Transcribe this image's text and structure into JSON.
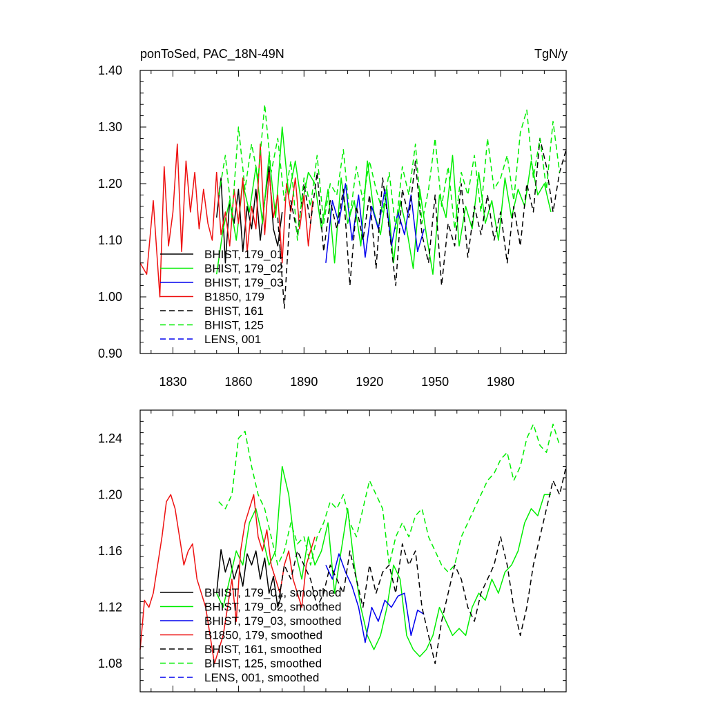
{
  "colors": {
    "black": "#000000",
    "green": "#00ee00",
    "blue": "#0000ee",
    "red": "#ee1111"
  },
  "chart_data": [
    {
      "type": "line",
      "title": "ponToSed, PAC_18N-49N",
      "units": "TgN/y",
      "xlim": [
        1815,
        2010
      ],
      "ylim": [
        0.9,
        1.4
      ],
      "xticks": [
        1830,
        1860,
        1890,
        1920,
        1950,
        1980
      ],
      "xtick_labels": [
        "1830",
        "1860",
        "1890",
        "1920",
        "1950",
        "1980"
      ],
      "yticks": [
        0.9,
        1.0,
        1.1,
        1.2,
        1.3,
        1.4
      ],
      "ytick_labels": [
        "0.90",
        "1.00",
        "1.10",
        "1.20",
        "1.30",
        "1.40"
      ],
      "legend_position": "lower-left",
      "series": [
        {
          "name": "BHIST, 179_01",
          "color": "black",
          "dash": false,
          "x": [
            1850,
            1852,
            1854,
            1856,
            1858,
            1860,
            1862,
            1864,
            1866,
            1868,
            1870,
            1872,
            1874,
            1876,
            1878,
            1880
          ],
          "y": [
            1.14,
            1.21,
            1.06,
            1.17,
            1.13,
            1.19,
            1.08,
            1.16,
            1.12,
            1.19,
            1.1,
            1.17,
            1.23,
            1.12,
            1.09,
            1.15
          ]
        },
        {
          "name": "BHIST, 179_02",
          "color": "green",
          "dash": false,
          "x": [
            1850,
            1853,
            1856,
            1859,
            1862,
            1865,
            1868,
            1871,
            1874,
            1877,
            1880,
            1883,
            1886,
            1889,
            1892,
            1895,
            1898,
            1901,
            1904,
            1907,
            1910,
            1913,
            1916,
            1919,
            1922,
            1925,
            1928,
            1931,
            1934,
            1937,
            1940,
            1943,
            1946,
            1949,
            1952,
            1955,
            1958,
            1961,
            1964,
            1967,
            1970,
            1973,
            1976,
            1979,
            1982,
            1985,
            1988,
            1991,
            1994,
            1997,
            2000,
            2003
          ],
          "y": [
            1.04,
            1.12,
            1.17,
            1.1,
            1.2,
            1.15,
            1.23,
            1.13,
            1.25,
            1.14,
            1.3,
            1.18,
            1.24,
            1.16,
            1.22,
            1.2,
            1.12,
            1.19,
            1.06,
            1.21,
            1.13,
            1.17,
            1.09,
            1.24,
            1.15,
            1.11,
            1.19,
            1.06,
            1.17,
            1.12,
            1.05,
            1.19,
            1.11,
            1.04,
            1.18,
            1.14,
            1.25,
            1.09,
            1.16,
            1.12,
            1.22,
            1.13,
            1.17,
            1.1,
            1.21,
            1.14,
            1.19,
            1.16,
            1.24,
            1.18,
            1.2,
            1.15
          ]
        },
        {
          "name": "BHIST, 179_03",
          "color": "blue",
          "dash": false,
          "x": [
            1900,
            1903,
            1906,
            1909,
            1912,
            1915,
            1918,
            1921,
            1924,
            1927,
            1930,
            1933,
            1936,
            1939,
            1942,
            1945
          ],
          "y": [
            1.06,
            1.17,
            1.13,
            1.2,
            1.1,
            1.18,
            1.07,
            1.16,
            1.12,
            1.19,
            1.09,
            1.15,
            1.11,
            1.18,
            1.08,
            1.12
          ]
        },
        {
          "name": "B1850, 179",
          "color": "red",
          "dash": false,
          "x": [
            1815,
            1818,
            1821,
            1824,
            1826,
            1828,
            1830,
            1832,
            1834,
            1836,
            1838,
            1840,
            1842,
            1844,
            1846,
            1848,
            1850,
            1852,
            1854,
            1856,
            1858,
            1860,
            1862,
            1864,
            1866,
            1868,
            1870,
            1872,
            1874,
            1876,
            1878,
            1880,
            1882,
            1884,
            1886,
            1888,
            1890,
            1892,
            1894
          ],
          "y": [
            1.06,
            1.04,
            1.17,
            1.0,
            1.23,
            1.09,
            1.15,
            1.27,
            1.08,
            1.24,
            1.15,
            1.22,
            1.12,
            1.19,
            1.13,
            1.1,
            1.22,
            1.11,
            1.15,
            1.09,
            1.19,
            1.13,
            1.21,
            1.08,
            1.16,
            1.12,
            1.27,
            1.11,
            1.22,
            1.14,
            1.18,
            1.06,
            1.2,
            1.15,
            1.21,
            1.12,
            1.18,
            1.09,
            1.17
          ]
        },
        {
          "name": "BHIST, 161",
          "color": "black",
          "dash": true,
          "x": [
            1878,
            1881,
            1884,
            1887,
            1890,
            1893,
            1896,
            1899,
            1902,
            1905,
            1908,
            1911,
            1914,
            1917,
            1920,
            1923,
            1926,
            1929,
            1932,
            1935,
            1938,
            1941,
            1944,
            1947,
            1950,
            1953,
            1956,
            1959,
            1962,
            1965,
            1968,
            1971,
            1974,
            1977,
            1980,
            1983,
            1986,
            1989,
            1992,
            1995,
            1998,
            2001,
            2004,
            2007,
            2010
          ],
          "y": [
            1.14,
            0.98,
            1.17,
            1.11,
            1.2,
            1.13,
            1.22,
            1.08,
            1.17,
            1.12,
            1.19,
            1.02,
            1.16,
            1.1,
            1.18,
            1.05,
            1.21,
            1.12,
            1.02,
            1.19,
            1.14,
            1.24,
            1.11,
            1.06,
            1.18,
            1.02,
            1.13,
            1.09,
            1.2,
            1.07,
            1.16,
            1.11,
            1.18,
            1.1,
            1.15,
            1.06,
            1.16,
            1.09,
            1.2,
            1.15,
            1.28,
            1.23,
            1.15,
            1.22,
            1.26
          ]
        },
        {
          "name": "BHIST, 125",
          "color": "green",
          "dash": true,
          "x": [
            1851,
            1854,
            1857,
            1860,
            1863,
            1866,
            1869,
            1872,
            1875,
            1878,
            1881,
            1884,
            1887,
            1890,
            1893,
            1896,
            1899,
            1902,
            1905,
            1908,
            1911,
            1914,
            1917,
            1920,
            1923,
            1926,
            1929,
            1932,
            1935,
            1938,
            1941,
            1944,
            1947,
            1950,
            1953,
            1956,
            1959,
            1962,
            1965,
            1968,
            1971,
            1974,
            1977,
            1980,
            1983,
            1986,
            1989,
            1992,
            1995,
            1998,
            2001,
            2004,
            2007
          ],
          "y": [
            1.18,
            1.25,
            1.14,
            1.3,
            1.19,
            1.27,
            1.21,
            1.34,
            1.22,
            1.28,
            1.17,
            1.24,
            1.1,
            1.21,
            1.16,
            1.25,
            1.13,
            1.2,
            1.18,
            1.26,
            1.14,
            1.23,
            1.17,
            1.24,
            1.19,
            1.15,
            1.22,
            1.12,
            1.23,
            1.18,
            1.27,
            1.13,
            1.19,
            1.28,
            1.16,
            1.23,
            1.12,
            1.22,
            1.18,
            1.25,
            1.15,
            1.28,
            1.19,
            1.21,
            1.25,
            1.17,
            1.29,
            1.33,
            1.21,
            1.28,
            1.19,
            1.31,
            1.22
          ]
        },
        {
          "name": "LENS, 001",
          "color": "blue",
          "dash": true,
          "x": [],
          "y": []
        }
      ]
    },
    {
      "type": "line",
      "title": "",
      "xlim": [
        1815,
        2010
      ],
      "ylim": [
        1.06,
        1.26
      ],
      "yticks": [
        1.08,
        1.12,
        1.16,
        1.2,
        1.24
      ],
      "ytick_labels": [
        "1.08",
        "1.12",
        "1.16",
        "1.20",
        "1.24"
      ],
      "legend_position": "lower-left",
      "series": [
        {
          "name": "BHIST, 179_01, smoothed",
          "color": "black",
          "dash": false,
          "x": [
            1850,
            1852,
            1854,
            1856,
            1858,
            1860,
            1862,
            1864,
            1866,
            1868,
            1870,
            1872,
            1874,
            1876,
            1878,
            1880
          ],
          "y": [
            1.13,
            1.161,
            1.145,
            1.155,
            1.14,
            1.15,
            1.135,
            1.158,
            1.15,
            1.16,
            1.14,
            1.155,
            1.13,
            1.142,
            1.12,
            1.13
          ]
        },
        {
          "name": "BHIST, 179_02, smoothed",
          "color": "green",
          "dash": false,
          "x": [
            1850,
            1853,
            1856,
            1859,
            1862,
            1865,
            1868,
            1871,
            1874,
            1877,
            1880,
            1883,
            1886,
            1889,
            1892,
            1895,
            1898,
            1901,
            1904,
            1907,
            1910,
            1913,
            1916,
            1919,
            1922,
            1925,
            1928,
            1931,
            1934,
            1937,
            1940,
            1943,
            1946,
            1949,
            1952,
            1955,
            1958,
            1961,
            1964,
            1967,
            1970,
            1973,
            1976,
            1979,
            1982,
            1985,
            1988,
            1991,
            1994,
            1997,
            2000,
            2003
          ],
          "y": [
            1.13,
            1.12,
            1.14,
            1.16,
            1.15,
            1.18,
            1.19,
            1.17,
            1.15,
            1.16,
            1.22,
            1.2,
            1.16,
            1.14,
            1.17,
            1.15,
            1.16,
            1.18,
            1.13,
            1.16,
            1.19,
            1.15,
            1.12,
            1.1,
            1.09,
            1.1,
            1.12,
            1.15,
            1.14,
            1.1,
            1.09,
            1.085,
            1.09,
            1.1,
            1.12,
            1.11,
            1.1,
            1.105,
            1.1,
            1.12,
            1.13,
            1.125,
            1.14,
            1.13,
            1.145,
            1.15,
            1.16,
            1.18,
            1.19,
            1.185,
            1.2,
            1.2
          ]
        },
        {
          "name": "BHIST, 179_03, smoothed",
          "color": "blue",
          "dash": false,
          "x": [
            1900,
            1903,
            1906,
            1909,
            1912,
            1915,
            1918,
            1921,
            1924,
            1927,
            1930,
            1933,
            1936,
            1939,
            1942,
            1945
          ],
          "y": [
            1.15,
            1.14,
            1.158,
            1.145,
            1.135,
            1.12,
            1.095,
            1.12,
            1.11,
            1.125,
            1.12,
            1.128,
            1.13,
            1.1,
            1.118,
            1.115
          ]
        },
        {
          "name": "B1850, 179, smoothed",
          "color": "red",
          "dash": false,
          "x": [
            1815,
            1817,
            1819,
            1821,
            1823,
            1825,
            1827,
            1829,
            1831,
            1833,
            1835,
            1837,
            1839,
            1841,
            1843,
            1845,
            1847,
            1849,
            1851,
            1853,
            1855,
            1857,
            1859,
            1861,
            1863,
            1865,
            1867,
            1869,
            1871,
            1873,
            1875,
            1877,
            1879,
            1881,
            1883,
            1885,
            1887,
            1889,
            1891,
            1893,
            1895
          ],
          "y": [
            1.09,
            1.125,
            1.12,
            1.13,
            1.15,
            1.17,
            1.195,
            1.2,
            1.19,
            1.17,
            1.15,
            1.16,
            1.165,
            1.14,
            1.13,
            1.12,
            1.1,
            1.08,
            1.09,
            1.1,
            1.12,
            1.14,
            1.11,
            1.16,
            1.18,
            1.19,
            1.2,
            1.17,
            1.16,
            1.175,
            1.15,
            1.14,
            1.13,
            1.15,
            1.16,
            1.14,
            1.13,
            1.12,
            1.15,
            1.16,
            1.17
          ]
        },
        {
          "name": "BHIST, 161, smoothed",
          "color": "black",
          "dash": true,
          "x": [
            1878,
            1881,
            1884,
            1887,
            1890,
            1893,
            1896,
            1899,
            1902,
            1905,
            1908,
            1911,
            1914,
            1917,
            1920,
            1923,
            1926,
            1929,
            1932,
            1935,
            1938,
            1941,
            1944,
            1947,
            1950,
            1953,
            1956,
            1959,
            1962,
            1965,
            1968,
            1971,
            1974,
            1977,
            1980,
            1983,
            1986,
            1989,
            1992,
            1995,
            1998,
            2001,
            2004,
            2007,
            2010
          ],
          "y": [
            1.12,
            1.15,
            1.14,
            1.16,
            1.15,
            1.14,
            1.12,
            1.13,
            1.15,
            1.14,
            1.13,
            1.16,
            1.14,
            1.12,
            1.15,
            1.13,
            1.145,
            1.15,
            1.13,
            1.165,
            1.15,
            1.16,
            1.12,
            1.1,
            1.08,
            1.11,
            1.13,
            1.15,
            1.14,
            1.12,
            1.11,
            1.13,
            1.14,
            1.15,
            1.17,
            1.15,
            1.12,
            1.1,
            1.12,
            1.15,
            1.17,
            1.19,
            1.21,
            1.2,
            1.22
          ]
        },
        {
          "name": "BHIST, 125, smoothed",
          "color": "green",
          "dash": true,
          "x": [
            1851,
            1854,
            1857,
            1860,
            1863,
            1866,
            1869,
            1872,
            1875,
            1878,
            1881,
            1884,
            1887,
            1890,
            1893,
            1896,
            1899,
            1902,
            1905,
            1908,
            1911,
            1914,
            1917,
            1920,
            1923,
            1926,
            1929,
            1932,
            1935,
            1938,
            1941,
            1944,
            1947,
            1950,
            1953,
            1956,
            1959,
            1962,
            1965,
            1968,
            1971,
            1974,
            1977,
            1980,
            1983,
            1986,
            1989,
            1992,
            1995,
            1998,
            2001,
            2004,
            2007
          ],
          "y": [
            1.195,
            1.19,
            1.2,
            1.24,
            1.245,
            1.22,
            1.2,
            1.19,
            1.17,
            1.15,
            1.16,
            1.18,
            1.165,
            1.17,
            1.15,
            1.17,
            1.18,
            1.195,
            1.19,
            1.2,
            1.18,
            1.17,
            1.19,
            1.21,
            1.2,
            1.19,
            1.15,
            1.17,
            1.18,
            1.17,
            1.185,
            1.19,
            1.17,
            1.16,
            1.15,
            1.145,
            1.15,
            1.17,
            1.18,
            1.19,
            1.2,
            1.21,
            1.215,
            1.225,
            1.23,
            1.21,
            1.22,
            1.24,
            1.25,
            1.235,
            1.23,
            1.25,
            1.235
          ]
        },
        {
          "name": "LENS, 001, smoothed",
          "color": "blue",
          "dash": true,
          "x": [],
          "y": []
        }
      ]
    }
  ]
}
